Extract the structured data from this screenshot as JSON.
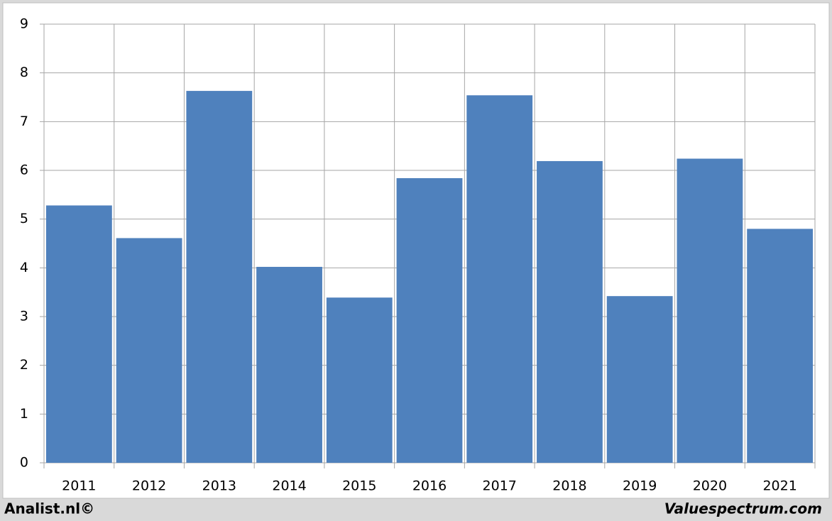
{
  "chart_data": {
    "type": "bar",
    "categories": [
      "2011",
      "2012",
      "2013",
      "2014",
      "2015",
      "2016",
      "2017",
      "2018",
      "2019",
      "2020",
      "2021"
    ],
    "values": [
      5.28,
      4.61,
      7.63,
      4.02,
      3.39,
      5.84,
      7.54,
      6.19,
      3.42,
      6.24,
      4.8
    ],
    "color": "#4f81bd",
    "ylim": [
      0,
      9
    ],
    "yticks": [
      0,
      1,
      2,
      3,
      4,
      5,
      6,
      7,
      8,
      9
    ],
    "grid": true,
    "annotations": [
      "Analist.nl©",
      "Valuespectrum.com"
    ]
  }
}
